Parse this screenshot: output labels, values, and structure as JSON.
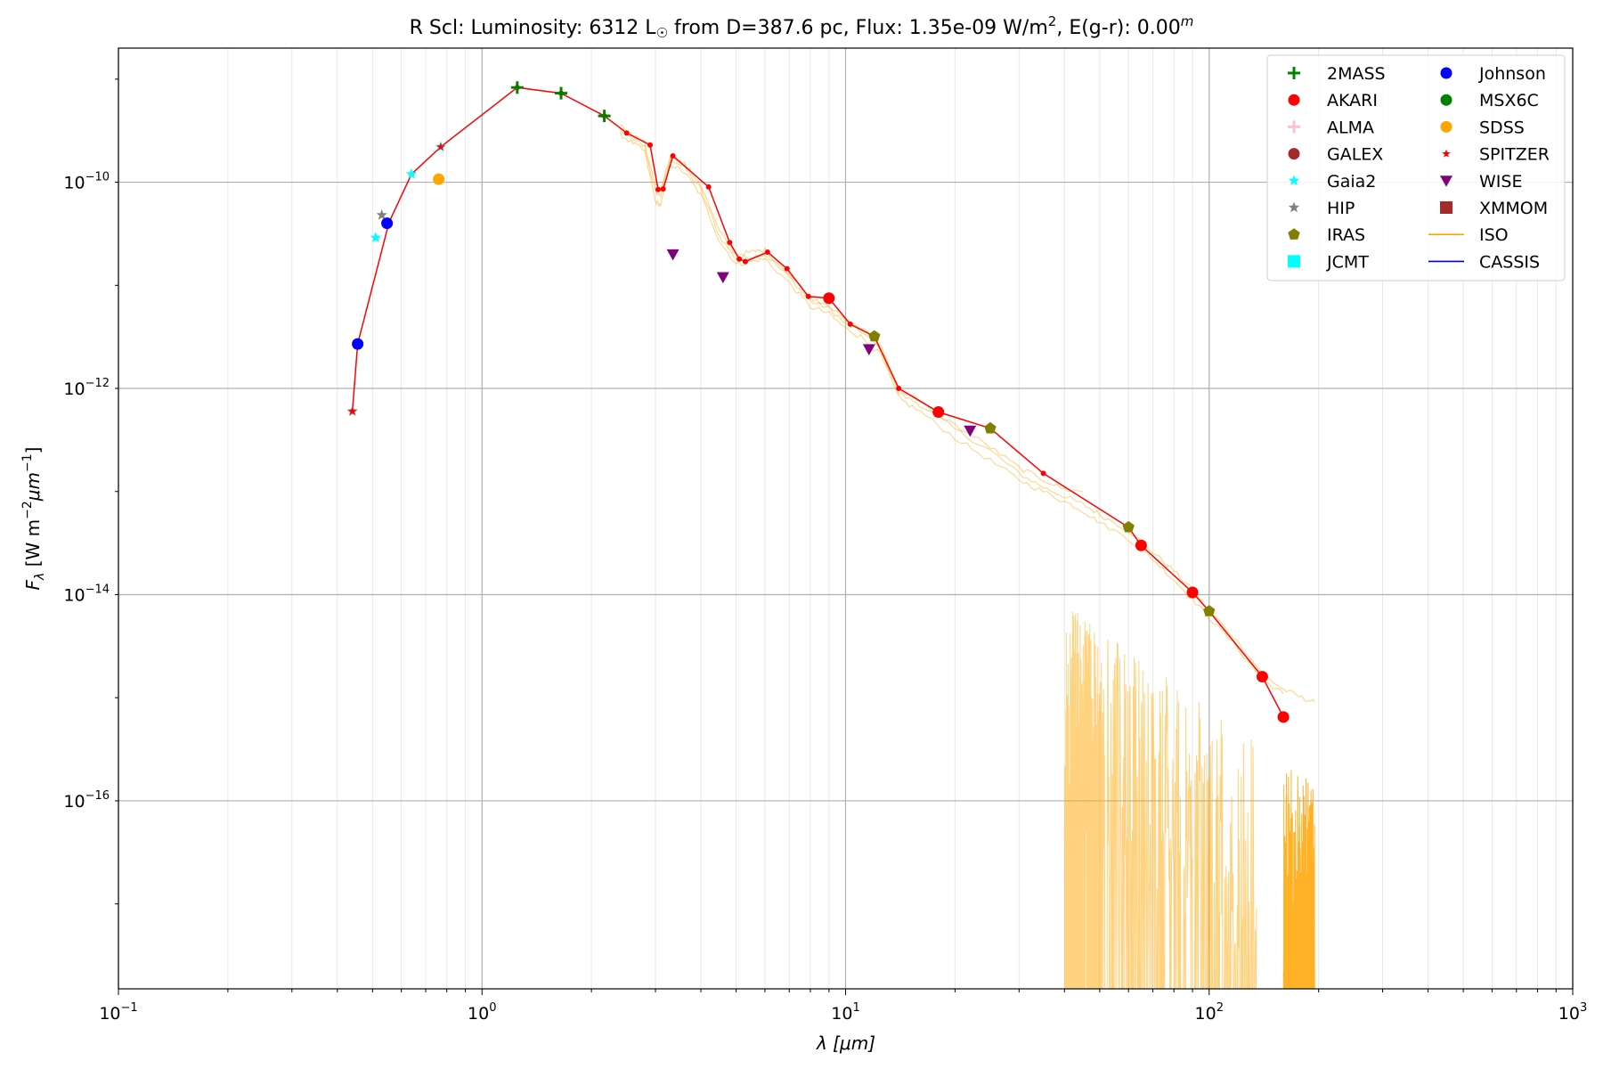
{
  "chart_data": {
    "type": "scatter",
    "title_parts": {
      "star": "R Scl:",
      "lum_label": "Luminosity: 6312 L",
      "sun_symbol": "☉",
      "dist": " from D=387.6 pc, Flux: 1.35e-09 W/m",
      "flux_exp": "2",
      "ext": ", E(g-r): 0.00",
      "ext_sup": "m"
    },
    "xlabel": {
      "sym": "λ",
      "rest": " [μm]"
    },
    "ylabel": {
      "sym": "F",
      "sub": "λ",
      "rest": " [W m",
      "e1": "−2",
      "mid": "μm",
      "e2": "−1",
      "end": "]"
    },
    "x_scale": "log",
    "y_scale": "log",
    "xlim": [
      0.1,
      1000
    ],
    "ylim": [
      1.5e-18,
      2e-09
    ],
    "x_ticks": [
      {
        "value": 0.1,
        "base": "10",
        "exp": "−1"
      },
      {
        "value": 1,
        "base": "10",
        "exp": "0"
      },
      {
        "value": 10,
        "base": "10",
        "exp": "1"
      },
      {
        "value": 100,
        "base": "10",
        "exp": "2"
      },
      {
        "value": 1000,
        "base": "10",
        "exp": "3"
      }
    ],
    "y_ticks": [
      {
        "value": 1e-16,
        "base": "10",
        "exp": "−16"
      },
      {
        "value": 1e-14,
        "base": "10",
        "exp": "−14"
      },
      {
        "value": 1e-12,
        "base": "10",
        "exp": "−12"
      },
      {
        "value": 1e-10,
        "base": "10",
        "exp": "−10"
      }
    ],
    "grid": true,
    "legend_position": "top-right",
    "legend": [
      {
        "name": "2MASS",
        "marker": "plus",
        "color": "#008000"
      },
      {
        "name": "AKARI",
        "marker": "circle",
        "color": "#ff0000"
      },
      {
        "name": "ALMA",
        "marker": "plus",
        "color": "#ffc0cb"
      },
      {
        "name": "GALEX",
        "marker": "circle",
        "color": "#a52a2a"
      },
      {
        "name": "Gaia2",
        "marker": "star",
        "color": "#00ffff"
      },
      {
        "name": "HIP",
        "marker": "star",
        "color": "#808080"
      },
      {
        "name": "IRAS",
        "marker": "pentagon",
        "color": "#808000"
      },
      {
        "name": "JCMT",
        "marker": "square",
        "color": "#00ffff"
      },
      {
        "name": "Johnson",
        "marker": "circle",
        "color": "#0000ff"
      },
      {
        "name": "MSX6C",
        "marker": "circle",
        "color": "#008000"
      },
      {
        "name": "SDSS",
        "marker": "circle",
        "color": "#ffa500"
      },
      {
        "name": "SPITZER",
        "marker": "star",
        "color": "#ff0000"
      },
      {
        "name": "WISE",
        "marker": "triangle-down",
        "color": "#800080"
      },
      {
        "name": "XMMOM",
        "marker": "square",
        "color": "#a52a2a"
      },
      {
        "name": "ISO",
        "marker": "line",
        "color": "#ffa500"
      },
      {
        "name": "CASSIS",
        "marker": "line",
        "color": "#0000cc"
      }
    ],
    "model_line": {
      "color": "#ff0000",
      "x": [
        0.44,
        0.455,
        0.555,
        0.64,
        0.77,
        1.25,
        1.65,
        2.17,
        2.5,
        2.9,
        3.05,
        3.15,
        3.35,
        4.2,
        4.8,
        5.1,
        5.3,
        6.1,
        6.9,
        7.9,
        9.0,
        10.3,
        12.0,
        14.0,
        18.0,
        25.0,
        35.0,
        60.0,
        65.0,
        90.0,
        100.0,
        140.0,
        160.0
      ],
      "y": [
        6e-13,
        2.7e-12,
        4.1e-11,
        1.2e-10,
        2.2e-10,
        8.3e-10,
        7.3e-10,
        4.4e-10,
        3e-10,
        2.3e-10,
        8.5e-11,
        8.6e-11,
        1.8e-10,
        9e-11,
        2.6e-11,
        1.8e-11,
        1.7e-11,
        2.1e-11,
        1.45e-11,
        7.8e-12,
        7.5e-12,
        4.2e-12,
        3.2e-12,
        1e-12,
        5.9e-13,
        4.1e-13,
        1.5e-13,
        4.5e-14,
        3e-14,
        1.05e-14,
        6.9e-15,
        1.6e-15,
        6.5e-16
      ]
    },
    "points": [
      {
        "set": "2MASS",
        "x": 1.25,
        "y": 8.3e-10
      },
      {
        "set": "2MASS",
        "x": 1.65,
        "y": 7.3e-10
      },
      {
        "set": "2MASS",
        "x": 2.17,
        "y": 4.4e-10
      },
      {
        "set": "AKARI",
        "x": 9.0,
        "y": 7.5e-12
      },
      {
        "set": "AKARI",
        "x": 18.0,
        "y": 5.9e-13
      },
      {
        "set": "AKARI",
        "x": 65.0,
        "y": 3e-14
      },
      {
        "set": "AKARI",
        "x": 90.0,
        "y": 1.05e-14
      },
      {
        "set": "AKARI",
        "x": 140.0,
        "y": 1.6e-15
      },
      {
        "set": "AKARI",
        "x": 160.0,
        "y": 6.5e-16
      },
      {
        "set": "Gaia2",
        "x": 0.51,
        "y": 2.9e-11
      },
      {
        "set": "Gaia2",
        "x": 0.64,
        "y": 1.2e-10
      },
      {
        "set": "Gaia2",
        "x": 0.77,
        "y": 2.2e-10
      },
      {
        "set": "HIP",
        "x": 0.44,
        "y": 6e-13
      },
      {
        "set": "HIP",
        "x": 0.53,
        "y": 4.8e-11
      },
      {
        "set": "IRAS",
        "x": 12.0,
        "y": 3.2e-12
      },
      {
        "set": "IRAS",
        "x": 25.0,
        "y": 4.1e-13
      },
      {
        "set": "IRAS",
        "x": 60.0,
        "y": 4.5e-14
      },
      {
        "set": "IRAS",
        "x": 100.0,
        "y": 6.9e-15
      },
      {
        "set": "Johnson",
        "x": 0.455,
        "y": 2.7e-12
      },
      {
        "set": "Johnson",
        "x": 0.548,
        "y": 4e-11
      },
      {
        "set": "SDSS",
        "x": 0.76,
        "y": 1.07e-10
      },
      {
        "set": "SPITZER",
        "x": 0.44,
        "y": 6e-13
      },
      {
        "set": "SPITZER",
        "x": 0.77,
        "y": 2.2e-10
      },
      {
        "set": "WISE",
        "x": 3.35,
        "y": 2e-11
      },
      {
        "set": "WISE",
        "x": 4.6,
        "y": 1.2e-11
      },
      {
        "set": "WISE",
        "x": 11.6,
        "y": 2.4e-12
      },
      {
        "set": "WISE",
        "x": 22.0,
        "y": 3.9e-13
      }
    ],
    "iso_spectra": {
      "color": "#ffa500",
      "smooth": [
        {
          "x": [
            2.4,
            2.6,
            2.8,
            3.0,
            3.1,
            3.3,
            3.6,
            4.0,
            4.5,
            5.0,
            5.5,
            6.0,
            7.0,
            8.0,
            9.0,
            10.0,
            11.0,
            12.5,
            14.0,
            16.0,
            20.0,
            25.0,
            30.0,
            35.0,
            40.0,
            45.0,
            50.0,
            60.0,
            70.0,
            80.0,
            90.0,
            100.0,
            120.0,
            140.0,
            160.0,
            180.0,
            195.0
          ],
          "y": [
            3.2e-10,
            2.6e-10,
            2.2e-10,
            8e-11,
            7.5e-11,
            1.7e-10,
            1.4e-10,
            8.5e-11,
            3e-11,
            1.8e-11,
            1.9e-11,
            2e-11,
            1.2e-11,
            7e-12,
            6e-12,
            4.2e-12,
            3.6e-12,
            2.4e-12,
            9e-13,
            7e-13,
            4e-13,
            2.5e-13,
            1.5e-13,
            1.1e-13,
            9e-14,
            7.5e-14,
            6e-14,
            4.2e-14,
            2.6e-14,
            1.7e-14,
            1.1e-14,
            7e-15,
            3.5e-15,
            1.7e-15,
            1.2e-15,
            1e-15,
            9e-16
          ]
        },
        {
          "x": [
            2.4,
            2.6,
            2.8,
            3.0,
            3.1,
            3.3,
            3.6,
            4.0,
            4.5,
            5.0,
            5.5,
            6.0,
            7.0,
            8.0,
            9.0,
            10.0,
            11.0,
            12.5,
            14.0,
            16.0,
            20.0,
            25.0,
            30.0,
            35.0,
            40.0,
            45.0,
            50.0,
            60.0,
            70.0,
            80.0,
            90.0,
            100.0,
            120.0,
            140.0,
            160.0
          ],
          "y": [
            2.9e-10,
            2.4e-10,
            2e-10,
            6.5e-11,
            6e-11,
            1.5e-10,
            1.25e-10,
            7.5e-11,
            2.7e-11,
            1.6e-11,
            1.7e-11,
            1.8e-11,
            1.05e-11,
            6.2e-12,
            5.3e-12,
            3.8e-12,
            3.2e-12,
            2.1e-12,
            8e-13,
            6e-13,
            3.3e-13,
            2e-13,
            1.3e-13,
            1e-13,
            8e-14,
            6.5e-14,
            5e-14,
            3.5e-14,
            2.2e-14,
            1.4e-14,
            9e-15,
            6e-15,
            3e-15,
            1.5e-15,
            1.1e-15
          ]
        },
        {
          "x": [
            2.4,
            2.6,
            2.8,
            3.0,
            3.1,
            3.3,
            3.6,
            4.0,
            4.5,
            5.0,
            5.5,
            6.0,
            7.0,
            8.0,
            9.0,
            10.0,
            11.0,
            12.5,
            14.0,
            16.0,
            20.0,
            25.0,
            30.0,
            35.0,
            40.0,
            45.0
          ],
          "y": [
            3.5e-10,
            2.9e-10,
            2.4e-10,
            9e-11,
            8.5e-11,
            1.85e-10,
            1.5e-10,
            9.5e-11,
            3.3e-11,
            2e-11,
            2.1e-11,
            2.2e-11,
            1.3e-11,
            7.6e-12,
            6.5e-12,
            4.5e-12,
            3.9e-12,
            2.6e-12,
            1e-12,
            7.5e-13,
            4.4e-13,
            2.7e-13,
            1.7e-13,
            1.3e-13,
            1.05e-13,
            1e-13
          ]
        }
      ],
      "noisy_ranges": [
        [
          40,
          50
        ],
        [
          50,
          135
        ],
        [
          160,
          195
        ]
      ]
    }
  }
}
